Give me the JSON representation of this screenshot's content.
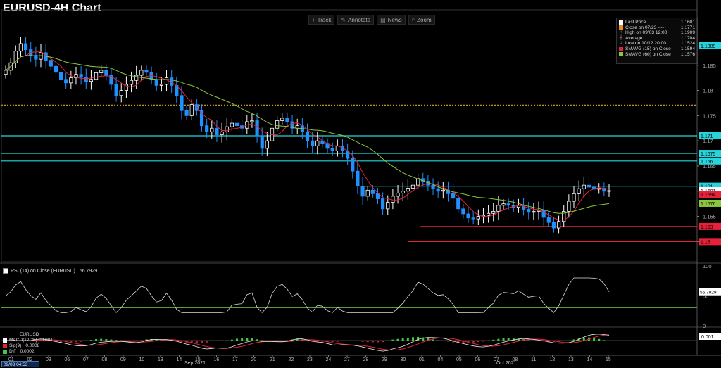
{
  "title": "EURUSD-4H Chart",
  "toolbar": [
    {
      "icon": "crosshair-icon",
      "glyph": "+",
      "label": "Track"
    },
    {
      "icon": "pencil-icon",
      "glyph": "✎",
      "label": "Annotate"
    },
    {
      "icon": "news-icon",
      "glyph": "▤",
      "label": "News"
    },
    {
      "icon": "zoom-icon",
      "glyph": "⌕",
      "label": "Zoom"
    }
  ],
  "legend": [
    {
      "kind": "swatch",
      "color": "#ffffff",
      "label": "Last Price",
      "value": "1.1601"
    },
    {
      "kind": "swatch",
      "color": "#f08a1c",
      "label": "Close on 07/23 ----",
      "value": "1.1771"
    },
    {
      "kind": "icon",
      "glyph": "↑",
      "label": "High on 09/03 12:00",
      "value": "1.1909"
    },
    {
      "kind": "icon",
      "glyph": "┼",
      "label": "Average",
      "value": "1.1704"
    },
    {
      "kind": "icon",
      "glyph": "↓",
      "label": "Low on 10/12 20:00",
      "value": "1.1524"
    },
    {
      "kind": "swatch",
      "color": "#e8213a",
      "label": "SMAVG (15)  on Close",
      "value": "1.1594"
    },
    {
      "kind": "swatch",
      "color": "#8cc63e",
      "label": "SMAVG (60)  on Close",
      "value": "1.1576"
    }
  ],
  "subpanels": {
    "rsi": {
      "label": "RSI (14)  on Close (EURUSD)",
      "value": "56.7929"
    },
    "macd": {
      "title": "EURUSD",
      "rows": [
        {
          "color": "#ffffff",
          "label": "MACD(12,26)",
          "value": "0.001"
        },
        {
          "color": "#e8213a",
          "label": "Sig(9)",
          "value": "0.0008"
        },
        {
          "color": "#3ecb3e",
          "label": "Diff",
          "value": "0.0002"
        }
      ]
    }
  },
  "date_box": "09/03 04:53",
  "month_labels": {
    "sep": "Sep 2021",
    "oct": "Oct 2021"
  },
  "colors": {
    "bull": "#ffffff",
    "bear": "#1e90ff",
    "sma15": "#e8213a",
    "sma60": "#8cc63e",
    "cyan": "#27d4dc",
    "red": "#e8213a",
    "orange": "#e0a030"
  },
  "chart_data": [
    {
      "type": "candlestick",
      "title": "EURUSD-4H Chart",
      "ylim": [
        1.146,
        1.196
      ],
      "x_ticks": [
        "01",
        "02",
        "03",
        "06",
        "07",
        "08",
        "09",
        "10",
        "13",
        "14",
        "15",
        "16",
        "17",
        "20",
        "21",
        "22",
        "23",
        "24",
        "27",
        "28",
        "29",
        "30",
        "01",
        "04",
        "05",
        "06",
        "07",
        "08",
        "11",
        "12",
        "13",
        "14",
        "15"
      ],
      "y_ticks": [
        1.15,
        1.155,
        1.16,
        1.165,
        1.17,
        1.175,
        1.18,
        1.185
      ],
      "price_close": [
        1.184,
        1.1855,
        1.1878,
        1.1893,
        1.1881,
        1.187,
        1.1862,
        1.1875,
        1.186,
        1.1848,
        1.1836,
        1.1822,
        1.1815,
        1.1825,
        1.1832,
        1.1826,
        1.1818,
        1.1822,
        1.1835,
        1.184,
        1.183,
        1.1812,
        1.179,
        1.18,
        1.1812,
        1.182,
        1.183,
        1.184,
        1.1836,
        1.1822,
        1.181,
        1.1812,
        1.1825,
        1.181,
        1.179,
        1.176,
        1.175,
        1.1772,
        1.176,
        1.173,
        1.1718,
        1.1725,
        1.1712,
        1.1718,
        1.1728,
        1.1735,
        1.173,
        1.1725,
        1.1738,
        1.174,
        1.171,
        1.1685,
        1.17,
        1.1725,
        1.174,
        1.1745,
        1.1738,
        1.1725,
        1.173,
        1.1718,
        1.17,
        1.169,
        1.17,
        1.1695,
        1.1685,
        1.168,
        1.169,
        1.168,
        1.1665,
        1.164,
        1.161,
        1.159,
        1.1602,
        1.1595,
        1.1585,
        1.1565,
        1.1578,
        1.159,
        1.1596,
        1.16,
        1.1606,
        1.1612,
        1.1625,
        1.162,
        1.1612,
        1.1605,
        1.16,
        1.1602,
        1.1595,
        1.1586,
        1.1565,
        1.1555,
        1.1547,
        1.1545,
        1.155,
        1.1552,
        1.1556,
        1.156,
        1.1572,
        1.1575,
        1.1572,
        1.1568,
        1.1572,
        1.1564,
        1.1558,
        1.156,
        1.1562,
        1.1548,
        1.1538,
        1.1527,
        1.154,
        1.156,
        1.158,
        1.1595,
        1.1605,
        1.1612,
        1.1608,
        1.1604,
        1.1606,
        1.16,
        1.1601
      ],
      "current_price": 1.1601,
      "horizontal_levels": [
        {
          "value": 1.1771,
          "label": "Close on 07/23",
          "style": "dotted",
          "color": "orange"
        },
        {
          "value": 1.171,
          "label": "1.171",
          "color": "cyan"
        },
        {
          "value": 1.1675,
          "label": "1.1675",
          "color": "cyan"
        },
        {
          "value": 1.166,
          "label": "1.166",
          "color": "cyan"
        },
        {
          "value": 1.161,
          "label": "1.161",
          "color": "cyan"
        },
        {
          "value": 1.153,
          "label": "1.153",
          "color": "red"
        },
        {
          "value": 1.15,
          "label": "1.15",
          "color": "red"
        }
      ],
      "price_tags": [
        {
          "value": 1.1889,
          "label": "1.1889",
          "color": "cyan"
        },
        {
          "value": 1.171,
          "label": "1.171",
          "color": "cyan"
        },
        {
          "value": 1.1675,
          "label": "1.1675",
          "color": "cyan"
        },
        {
          "value": 1.166,
          "label": "1.166",
          "color": "cyan"
        },
        {
          "value": 1.161,
          "label": "1.161",
          "color": "cyan"
        },
        {
          "value": 1.1601,
          "label": "1.1601",
          "color": "white"
        },
        {
          "value": 1.1594,
          "label": "1.1594",
          "color": "red"
        },
        {
          "value": 1.1576,
          "label": "1.1576",
          "color": "green"
        },
        {
          "value": 1.153,
          "label": "1.153",
          "color": "red"
        },
        {
          "value": 1.15,
          "label": "1.15",
          "color": "red"
        }
      ],
      "series": [
        {
          "name": "SMAVG (15)  on Close",
          "value": 1.1594
        },
        {
          "name": "SMAVG (60)  on Close",
          "value": 1.1576
        }
      ]
    },
    {
      "type": "line",
      "title": "RSI (14)  on Close (EURUSD)",
      "ylim": [
        0,
        100
      ],
      "y_ticks": [
        0,
        50,
        100
      ],
      "levels": [
        70,
        30
      ],
      "last": 56.7929
    },
    {
      "type": "line",
      "title": "EURUSD",
      "series": [
        {
          "name": "MACD(12,26)",
          "value": 0.001
        },
        {
          "name": "Sig(9)",
          "value": 0.0008
        },
        {
          "name": "Diff",
          "value": 0.0002
        }
      ],
      "last_tag": "0.001"
    }
  ]
}
